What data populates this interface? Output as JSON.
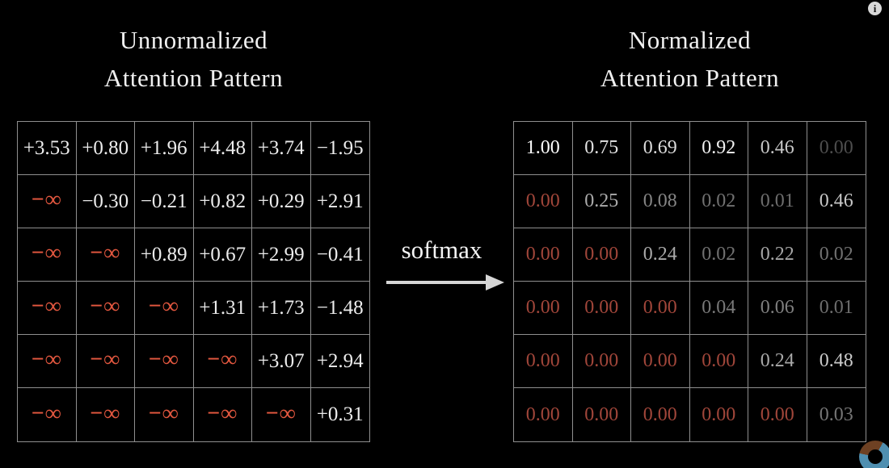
{
  "page": {
    "background": "#000000"
  },
  "header": {
    "info_icon_glyph": "i"
  },
  "colors": {
    "grid_line": "#8f8f8f",
    "title_text": "#f0f0f0",
    "value_white": "#ececec",
    "neg_infinity_red": "#e2573f",
    "masked_zero_red": "#a1463a",
    "arrow": "#d6d6d6"
  },
  "left_panel": {
    "title_line1": "Unnormalized",
    "title_line2": "Attention Pattern",
    "matrix": {
      "rows": [
        [
          {
            "t": "+3.53",
            "c": "#ececec"
          },
          {
            "t": "+0.80",
            "c": "#ececec"
          },
          {
            "t": "+1.96",
            "c": "#ececec"
          },
          {
            "t": "+4.48",
            "c": "#ececec"
          },
          {
            "t": "+3.74",
            "c": "#ececec"
          },
          {
            "t": "−1.95",
            "c": "#ececec"
          }
        ],
        [
          {
            "t": "−∞",
            "c": "#e2573f",
            "inf": true
          },
          {
            "t": "−0.30",
            "c": "#ececec"
          },
          {
            "t": "−0.21",
            "c": "#ececec"
          },
          {
            "t": "+0.82",
            "c": "#ececec"
          },
          {
            "t": "+0.29",
            "c": "#ececec"
          },
          {
            "t": "+2.91",
            "c": "#ececec"
          }
        ],
        [
          {
            "t": "−∞",
            "c": "#e2573f",
            "inf": true
          },
          {
            "t": "−∞",
            "c": "#e2573f",
            "inf": true
          },
          {
            "t": "+0.89",
            "c": "#ececec"
          },
          {
            "t": "+0.67",
            "c": "#ececec"
          },
          {
            "t": "+2.99",
            "c": "#ececec"
          },
          {
            "t": "−0.41",
            "c": "#ececec"
          }
        ],
        [
          {
            "t": "−∞",
            "c": "#e2573f",
            "inf": true
          },
          {
            "t": "−∞",
            "c": "#e2573f",
            "inf": true
          },
          {
            "t": "−∞",
            "c": "#e2573f",
            "inf": true
          },
          {
            "t": "+1.31",
            "c": "#ececec"
          },
          {
            "t": "+1.73",
            "c": "#ececec"
          },
          {
            "t": "−1.48",
            "c": "#ececec"
          }
        ],
        [
          {
            "t": "−∞",
            "c": "#e2573f",
            "inf": true
          },
          {
            "t": "−∞",
            "c": "#e2573f",
            "inf": true
          },
          {
            "t": "−∞",
            "c": "#e2573f",
            "inf": true
          },
          {
            "t": "−∞",
            "c": "#e2573f",
            "inf": true
          },
          {
            "t": "+3.07",
            "c": "#ececec"
          },
          {
            "t": "+2.94",
            "c": "#ececec"
          }
        ],
        [
          {
            "t": "−∞",
            "c": "#e2573f",
            "inf": true
          },
          {
            "t": "−∞",
            "c": "#e2573f",
            "inf": true
          },
          {
            "t": "−∞",
            "c": "#e2573f",
            "inf": true
          },
          {
            "t": "−∞",
            "c": "#e2573f",
            "inf": true
          },
          {
            "t": "−∞",
            "c": "#e2573f",
            "inf": true
          },
          {
            "t": "+0.31",
            "c": "#ececec"
          }
        ]
      ]
    }
  },
  "transform": {
    "label": "softmax"
  },
  "right_panel": {
    "title_line1": "Normalized",
    "title_line2": "Attention Pattern",
    "matrix": {
      "rows": [
        [
          {
            "t": "1.00",
            "c": "#fdfdfd"
          },
          {
            "t": "0.75",
            "c": "#e3e3e3"
          },
          {
            "t": "0.69",
            "c": "#dcdcdc"
          },
          {
            "t": "0.92",
            "c": "#f2f2f2"
          },
          {
            "t": "0.46",
            "c": "#c7c7c7"
          },
          {
            "t": "0.00",
            "c": "#4e4e4e"
          }
        ],
        [
          {
            "t": "0.00",
            "c": "#a1463a"
          },
          {
            "t": "0.25",
            "c": "#ababab"
          },
          {
            "t": "0.08",
            "c": "#858585"
          },
          {
            "t": "0.02",
            "c": "#717171"
          },
          {
            "t": "0.01",
            "c": "#6d6d6d"
          },
          {
            "t": "0.46",
            "c": "#c7c7c7"
          }
        ],
        [
          {
            "t": "0.00",
            "c": "#a1463a"
          },
          {
            "t": "0.00",
            "c": "#a1463a"
          },
          {
            "t": "0.24",
            "c": "#a9a9a9"
          },
          {
            "t": "0.02",
            "c": "#717171"
          },
          {
            "t": "0.22",
            "c": "#a5a5a5"
          },
          {
            "t": "0.02",
            "c": "#717171"
          }
        ],
        [
          {
            "t": "0.00",
            "c": "#a1463a"
          },
          {
            "t": "0.00",
            "c": "#a1463a"
          },
          {
            "t": "0.00",
            "c": "#a1463a"
          },
          {
            "t": "0.04",
            "c": "#797979"
          },
          {
            "t": "0.06",
            "c": "#7f7f7f"
          },
          {
            "t": "0.01",
            "c": "#6d6d6d"
          }
        ],
        [
          {
            "t": "0.00",
            "c": "#a1463a"
          },
          {
            "t": "0.00",
            "c": "#a1463a"
          },
          {
            "t": "0.00",
            "c": "#a1463a"
          },
          {
            "t": "0.00",
            "c": "#a1463a"
          },
          {
            "t": "0.24",
            "c": "#a9a9a9"
          },
          {
            "t": "0.48",
            "c": "#cacaca"
          }
        ],
        [
          {
            "t": "0.00",
            "c": "#a1463a"
          },
          {
            "t": "0.00",
            "c": "#a1463a"
          },
          {
            "t": "0.00",
            "c": "#a1463a"
          },
          {
            "t": "0.00",
            "c": "#a1463a"
          },
          {
            "t": "0.00",
            "c": "#a1463a"
          },
          {
            "t": "0.03",
            "c": "#757575"
          }
        ]
      ]
    }
  },
  "brand_logo": {
    "name": "ring-logo",
    "blue_hex": "#4f8fb0",
    "brown_hex": "#6e4123"
  }
}
